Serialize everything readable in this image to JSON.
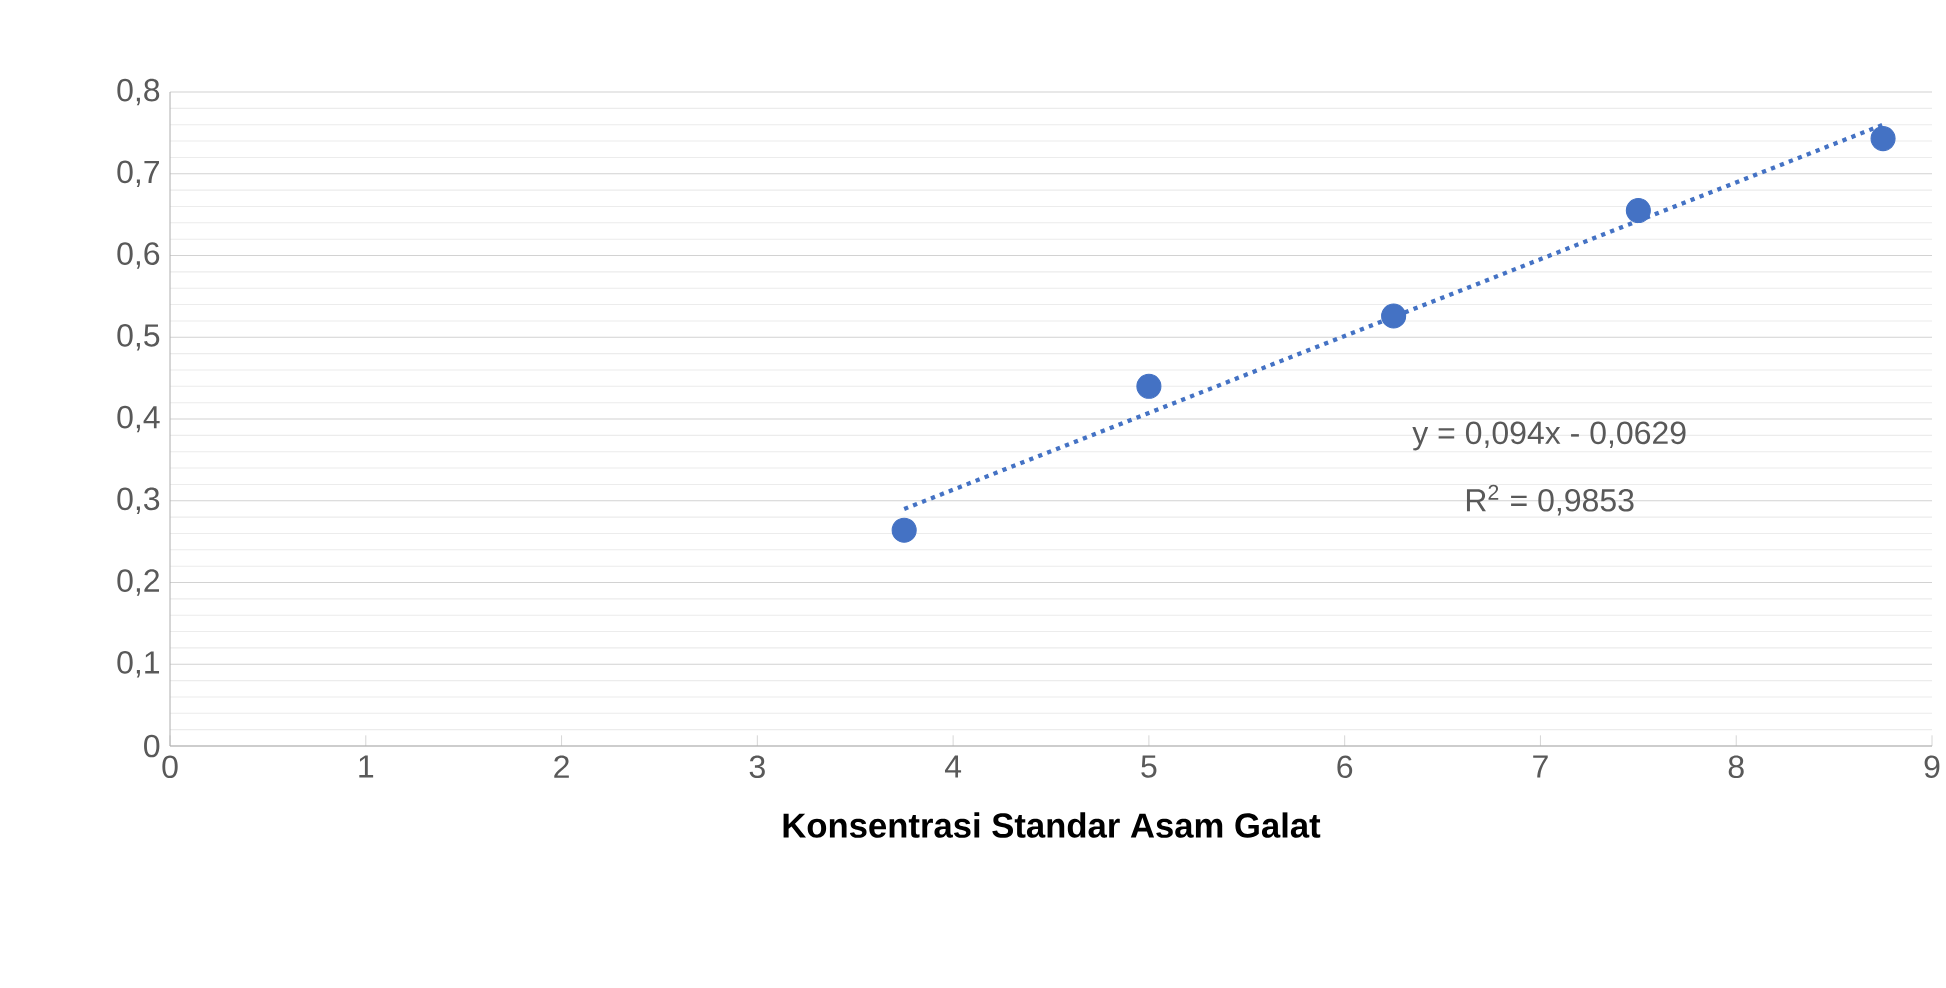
{
  "chart_data": {
    "type": "scatter",
    "xlabel": "Konsentrasi Standar Asam Galat",
    "x": [
      3.75,
      5,
      6.25,
      7.5,
      8.75
    ],
    "series": [
      {
        "color": "#4472c4",
        "values": [
          0.264,
          0.44,
          0.526,
          0.655,
          0.743
        ],
        "marker": "circle"
      },
      {
        "type": "line",
        "color": "#4472c4",
        "x": [
          3.75,
          8.75
        ],
        "values": [
          0.29,
          0.76
        ],
        "line_style": "dotted",
        "marker": "none"
      }
    ],
    "annotations": [
      "y = 0,094x - 0,0629",
      "R$^{2}$ = 0,9853"
    ],
    "xlim": [
      0,
      9
    ],
    "xticks": [
      0,
      1,
      2,
      3,
      4,
      5,
      6,
      7,
      8,
      9
    ],
    "ylim": [
      0,
      0.8
    ],
    "yticks": [
      0,
      {
        "value": 0.1,
        "label": "0,1"
      },
      {
        "value": 0.2,
        "label": "0,2"
      },
      {
        "value": 0.3,
        "label": "0,3"
      },
      {
        "value": 0.4,
        "label": "0,4"
      },
      {
        "value": 0.5,
        "label": "0,5"
      },
      {
        "value": 0.6,
        "label": "0,6"
      },
      {
        "value": 0.7,
        "label": "0,7"
      },
      {
        "value": 0.8,
        "label": "0,8"
      }
    ],
    "grid": "y"
  }
}
